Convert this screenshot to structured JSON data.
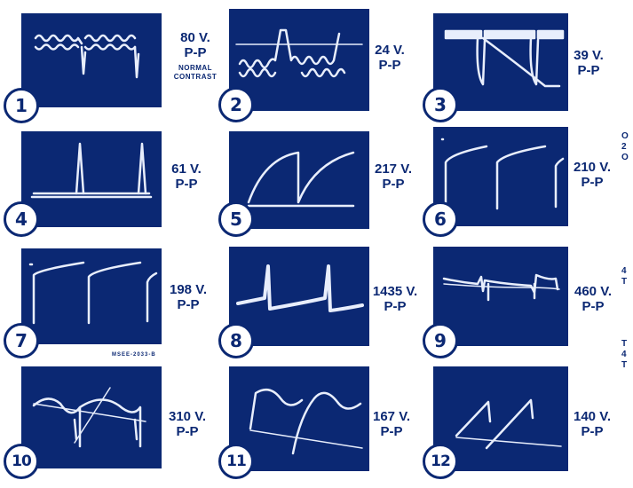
{
  "panels": [
    {
      "number": "1",
      "voltage": "80 V.",
      "unit": "P-P",
      "note_line1": "NORMAL",
      "note_line2": "CONTRAST"
    },
    {
      "number": "2",
      "voltage": "24 V.",
      "unit": "P-P"
    },
    {
      "number": "3",
      "voltage": "39 V.",
      "unit": "P-P"
    },
    {
      "number": "4",
      "voltage": "61 V.",
      "unit": "P-P"
    },
    {
      "number": "5",
      "voltage": "217 V.",
      "unit": "P-P"
    },
    {
      "number": "6",
      "voltage": "210 V.",
      "unit": "P-P"
    },
    {
      "number": "7",
      "voltage": "198 V.",
      "unit": "P-P"
    },
    {
      "number": "8",
      "voltage": "1435 V.",
      "unit": "P-P"
    },
    {
      "number": "9",
      "voltage": "460 V.",
      "unit": "P-P"
    },
    {
      "number": "10",
      "voltage": "310 V.",
      "unit": "P-P"
    },
    {
      "number": "11",
      "voltage": "167 V.",
      "unit": "P-P"
    },
    {
      "number": "12",
      "voltage": "140 V.",
      "unit": "P-P"
    }
  ],
  "figure_code": "MSEE-2033-B",
  "edge_fragments": [
    {
      "lines": [
        "O",
        "2",
        "O"
      ]
    },
    {
      "lines": [
        "4",
        "T"
      ]
    },
    {
      "lines": [
        "T",
        "4",
        "T"
      ]
    }
  ],
  "colors": {
    "screen": "#0b2873",
    "trace": "#e8eefc",
    "ink": "#0b2873"
  }
}
